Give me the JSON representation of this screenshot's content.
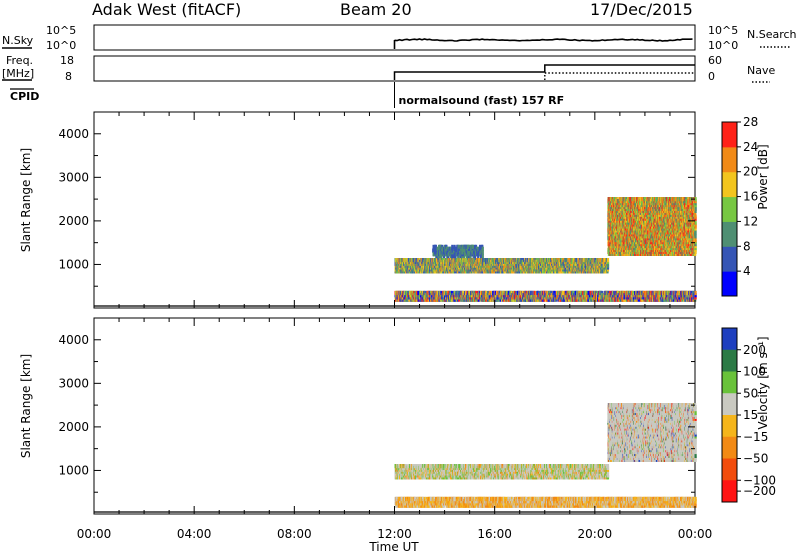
{
  "header": {
    "station": "Adak West (fitACF)",
    "beam": "Beam 20",
    "date": "17/Dec/2015"
  },
  "status_panels": {
    "nsky": {
      "label": "N.Sky",
      "right_label": "N.Search",
      "ticks": [
        "10^5",
        "10^0"
      ]
    },
    "freq": {
      "label_lines": [
        "Freq.",
        "[MHz]"
      ],
      "left_ticks": [
        18,
        8
      ],
      "right_ticks": [
        60,
        0
      ],
      "right_label": "Nave"
    },
    "cpid": {
      "label": "CPID",
      "program": "normalsound (fast) 157 RF",
      "program_start_hour": 12
    }
  },
  "chart_data": [
    {
      "type": "heatmap",
      "title": "",
      "xlabel": "",
      "ylabel": "Slant Range [km]",
      "xlim": [
        0,
        24
      ],
      "ylim": [
        0,
        4500
      ],
      "yticks": [
        1000,
        2000,
        3000,
        4000
      ],
      "colorbar": {
        "label": "Power [dB]",
        "ticks": [
          4,
          8,
          12,
          16,
          20,
          24,
          28
        ],
        "colors": [
          "#0000ff",
          "#3555b5",
          "#4f8f73",
          "#77c742",
          "#f3c51e",
          "#f18a17",
          "#ff2218"
        ]
      },
      "scatter_regions": [
        {
          "time": [
            12.0,
            20.5
          ],
          "range": [
            800,
            1100
          ],
          "level": "medium-high"
        },
        {
          "time": [
            12.0,
            24.0
          ],
          "range": [
            150,
            350
          ],
          "level": "mixed"
        },
        {
          "time": [
            20.5,
            24.0
          ],
          "range": [
            1200,
            2500
          ],
          "level": "high"
        },
        {
          "time": [
            13.5,
            15.5
          ],
          "range": [
            1150,
            1400
          ],
          "level": "low"
        }
      ]
    },
    {
      "type": "heatmap",
      "title": "",
      "xlabel": "Time UT",
      "ylabel": "Slant Range [km]",
      "xlim": [
        0,
        24
      ],
      "ylim": [
        0,
        4500
      ],
      "yticks": [
        1000,
        2000,
        3000,
        4000
      ],
      "xticks": [
        "00:00",
        "04:00",
        "08:00",
        "12:00",
        "16:00",
        "20:00",
        "00:00"
      ],
      "colorbar": {
        "label": "Velocity [m s⁻¹]",
        "ticks": [
          200,
          100,
          50,
          15,
          -15,
          -50,
          -100,
          -200
        ],
        "colors": [
          "#1e3fbf",
          "#2b7a45",
          "#69c23a",
          "#c9c9c1",
          "#f5b51b",
          "#f28a15",
          "#f24c0c",
          "#ff1313"
        ]
      },
      "scatter_regions": [
        {
          "time": [
            12.0,
            20.5
          ],
          "range": [
            800,
            1100
          ],
          "level": "ground-scatter-mixed"
        },
        {
          "time": [
            12.0,
            24.0
          ],
          "range": [
            150,
            350
          ],
          "level": "negative"
        },
        {
          "time": [
            20.5,
            24.0
          ],
          "range": [
            1200,
            2500
          ],
          "level": "ground-scatter"
        }
      ]
    }
  ]
}
